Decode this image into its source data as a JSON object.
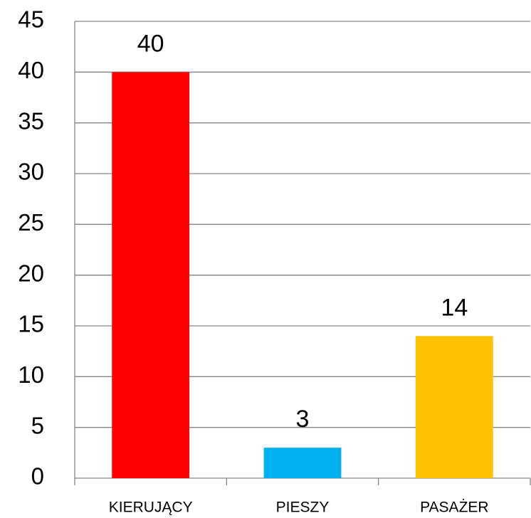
{
  "chart_data": {
    "type": "bar",
    "categories": [
      "KIERUJĄCY",
      "PIESZY",
      "PASAŻER"
    ],
    "values": [
      40,
      3,
      14
    ],
    "colors": [
      "#ff0000",
      "#00b0f0",
      "#ffc000"
    ],
    "ylim": [
      0,
      45
    ],
    "yticks": [
      0,
      5,
      10,
      15,
      20,
      25,
      30,
      35,
      40,
      45
    ],
    "grid": true
  }
}
